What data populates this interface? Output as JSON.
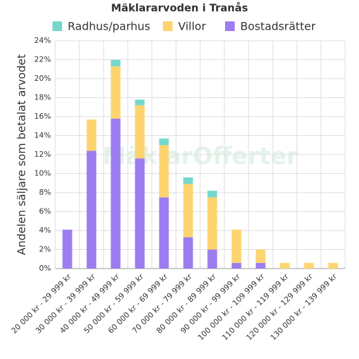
{
  "chart_data": {
    "type": "stacked-bar",
    "title": "Mäklararvoden i Tranås",
    "watermark": "MäklarOfferter",
    "ylabel": "Andelen säljare som betalat arvodet",
    "categories": [
      "20 000 kr - 29 999 kr",
      "30 000 kr - 39 999 kr",
      "40 000 kr - 49 999 kr",
      "50 000 kr - 59 999 kr",
      "60 000 kr - 69 999 kr",
      "70 000 kr - 79 999 kr",
      "80 000 kr - 89 999 kr",
      "90 000 kr - 99 999 kr",
      "100 000 kr - 109 999 kr",
      "110 000 kr - 119 999 kr",
      "120 000 kr - 129 999 kr",
      "130 000 kr - 139 999 kr"
    ],
    "series": [
      {
        "name": "Radhus/parhus",
        "color": "#76d8cc",
        "values": [
          0,
          0,
          0.7,
          0.6,
          0.7,
          0.7,
          0.7,
          0,
          0,
          0,
          0,
          0
        ]
      },
      {
        "name": "Villor",
        "color": "#fdd46f",
        "values": [
          0,
          3.3,
          5.5,
          5.6,
          5.5,
          5.6,
          5.5,
          3.5,
          1.4,
          0.6,
          0.6,
          0.6
        ]
      },
      {
        "name": "Bostadsrätter",
        "color": "#9c7df0",
        "values": [
          4.1,
          12.4,
          15.8,
          11.6,
          7.5,
          3.3,
          2.0,
          0.6,
          0.6,
          0,
          0,
          0
        ]
      }
    ],
    "ylim": [
      0,
      24
    ],
    "yticks": [
      {
        "value": 0,
        "label": "0%"
      },
      {
        "value": 2,
        "label": "2%"
      },
      {
        "value": 4,
        "label": "4%"
      },
      {
        "value": 6,
        "label": "6%"
      },
      {
        "value": 8,
        "label": "8%"
      },
      {
        "value": 10,
        "label": "10%"
      },
      {
        "value": 12,
        "label": "12%"
      },
      {
        "value": 14,
        "label": "14%"
      },
      {
        "value": 16,
        "label": "16%"
      },
      {
        "value": 18,
        "label": "18%"
      },
      {
        "value": 20,
        "label": "20%"
      },
      {
        "value": 22,
        "label": "22%"
      },
      {
        "value": 24,
        "label": "24%"
      }
    ],
    "grid": true
  }
}
